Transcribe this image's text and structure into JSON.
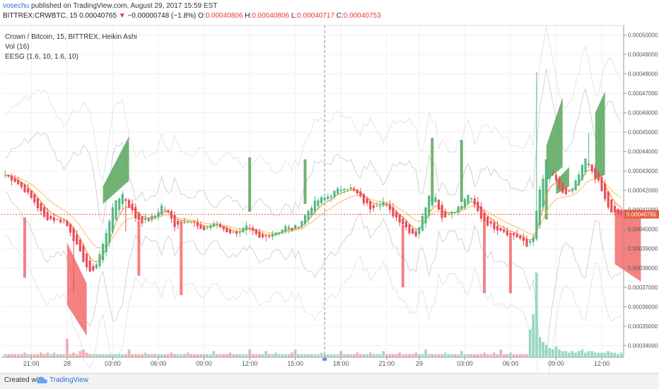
{
  "header": {
    "author": "vosechu",
    "published": "published on TradingView.com, August 29, 2017 15:59 EST",
    "symbol": "BITTREX:CRWBTC, 15",
    "last": "0.00040765",
    "change_arrow": "▼",
    "change": "−0.00000748 (−1.8%)",
    "o_label": "O:",
    "o": "0.00040806",
    "h_label": "H:",
    "h": "0.00040806",
    "l_label": "L:",
    "l": "0.00040717",
    "c_label": "C:",
    "c": "0.00040753"
  },
  "legend": {
    "line1": "Crown / Bitcoin, 15, BITTREX, Heikin Ashi",
    "line2": "Vol (16)",
    "line3": "EESG (1.6, 10, 1.6, 10)"
  },
  "footer": {
    "created_with": "Created with",
    "brand": "TradingView"
  },
  "chart_data": {
    "type": "candlestick",
    "title": "Crown / Bitcoin, 15, BITTREX, Heikin Ashi",
    "y_ticks": [
      "0.00050000",
      "0.00049000",
      "0.00048000",
      "0.00047000",
      "0.00046000",
      "0.00045000",
      "0.00044000",
      "0.00043000",
      "0.00042000",
      "0.00041000",
      "0.00040000",
      "0.00039000",
      "0.00038000",
      "0.00037000",
      "0.00036000",
      "0.00035000",
      "0.00034000"
    ],
    "ylim": [
      0.000334,
      0.000505
    ],
    "last_price_label": "0.00040765",
    "last_price": 0.00040765,
    "x_ticks": [
      "21:00",
      "28",
      "03:00",
      "06:00",
      "09:00",
      "12:00",
      "15:00",
      "18:00",
      "21:00",
      "29",
      "03:00",
      "06:00",
      "09:00",
      "12:00"
    ],
    "x_tick_index": [
      8,
      19,
      33,
      47,
      61,
      75,
      89,
      103,
      117,
      127,
      141,
      155,
      169,
      183
    ],
    "crosshair_index": 98,
    "colors": {
      "up": "#53b987",
      "down": "#eb4d5c",
      "up_fill": "#58a65c",
      "down_fill": "#f26c6c",
      "ema_fast": "#f0a030",
      "ema_slow": "#f7c97a",
      "band": "#c8c8c8",
      "price_line": "#e06040",
      "crosshair": "#6a8fd6"
    },
    "ha_close_path": [
      [
        0,
        0.000428
      ],
      [
        3,
        0.000425
      ],
      [
        6,
        0.00042
      ],
      [
        9,
        0.000414
      ],
      [
        12,
        0.000406
      ],
      [
        15,
        0.000405
      ],
      [
        18,
        0.000404
      ],
      [
        20,
        0.000399
      ],
      [
        22,
        0.000391
      ],
      [
        24,
        0.000384
      ],
      [
        26,
        0.000377
      ],
      [
        28,
        0.000382
      ],
      [
        30,
        0.000392
      ],
      [
        32,
        0.000405
      ],
      [
        34,
        0.000415
      ],
      [
        36,
        0.000418
      ],
      [
        38,
        0.000412
      ],
      [
        40,
        0.000406
      ],
      [
        42,
        0.000404
      ],
      [
        44,
        0.000405
      ],
      [
        46,
        0.000407
      ],
      [
        48,
        0.000412
      ],
      [
        50,
        0.000408
      ],
      [
        52,
        0.000402
      ],
      [
        54,
        0.000404
      ],
      [
        56,
        0.000405
      ],
      [
        58,
        0.000403
      ],
      [
        60,
        0.000399
      ],
      [
        62,
        0.000401
      ],
      [
        64,
        0.000403
      ],
      [
        66,
        0.000401
      ],
      [
        68,
        0.000399
      ],
      [
        70,
        0.000398
      ],
      [
        72,
        0.000399
      ],
      [
        74,
        0.000401
      ],
      [
        76,
        0.000398
      ],
      [
        78,
        0.000395
      ],
      [
        80,
        0.000396
      ],
      [
        82,
        0.000398
      ],
      [
        84,
        0.000399
      ],
      [
        86,
        0.000401
      ],
      [
        88,
        0.0004
      ],
      [
        90,
        0.000402
      ],
      [
        92,
        0.000407
      ],
      [
        94,
        0.000412
      ],
      [
        96,
        0.000415
      ],
      [
        98,
        0.000416
      ],
      [
        100,
        0.000418
      ],
      [
        102,
        0.00042
      ],
      [
        104,
        0.000422
      ],
      [
        106,
        0.000421
      ],
      [
        108,
        0.000418
      ],
      [
        110,
        0.000414
      ],
      [
        112,
        0.000411
      ],
      [
        114,
        0.000413
      ],
      [
        116,
        0.000414
      ],
      [
        118,
        0.000409
      ],
      [
        120,
        0.000406
      ],
      [
        122,
        0.000403
      ],
      [
        124,
        0.000399
      ],
      [
        126,
        0.000397
      ],
      [
        128,
        0.000406
      ],
      [
        130,
        0.000418
      ],
      [
        132,
        0.000416
      ],
      [
        134,
        0.000406
      ],
      [
        136,
        0.000408
      ],
      [
        138,
        0.00041
      ],
      [
        140,
        0.000412
      ],
      [
        142,
        0.000418
      ],
      [
        144,
        0.000412
      ],
      [
        146,
        0.000406
      ],
      [
        148,
        0.000403
      ],
      [
        150,
        0.000401
      ],
      [
        152,
        0.0004
      ],
      [
        154,
        0.000398
      ],
      [
        156,
        0.000397
      ],
      [
        158,
        0.000395
      ],
      [
        160,
        0.000391
      ],
      [
        162,
        0.000397
      ],
      [
        164,
        0.00042
      ],
      [
        166,
        0.000432
      ],
      [
        168,
        0.000428
      ],
      [
        170,
        0.00042
      ],
      [
        172,
        0.000418
      ],
      [
        174,
        0.00042
      ],
      [
        176,
        0.000428
      ],
      [
        178,
        0.000436
      ],
      [
        180,
        0.00043
      ],
      [
        182,
        0.000424
      ],
      [
        184,
        0.000415
      ],
      [
        186,
        0.000408
      ],
      [
        188,
        0.000408
      ],
      [
        189,
        0.000408
      ]
    ],
    "volume": [
      2,
      2,
      2,
      2,
      2,
      2,
      3,
      2,
      2,
      2,
      2,
      3,
      2,
      3,
      2,
      3,
      2,
      2,
      2,
      12,
      2,
      3,
      2,
      4,
      5,
      3,
      2,
      2,
      2,
      2,
      2,
      2,
      2,
      2,
      2,
      2,
      2,
      2,
      5,
      2,
      2,
      2,
      2,
      3,
      2,
      2,
      2,
      2,
      2,
      2,
      2,
      3,
      2,
      2,
      2,
      2,
      3,
      2,
      2,
      2,
      2,
      2,
      2,
      2,
      4,
      2,
      2,
      2,
      2,
      3,
      2,
      2,
      2,
      2,
      2,
      5,
      2,
      2,
      2,
      2,
      4,
      2,
      2,
      3,
      2,
      2,
      2,
      2,
      3,
      5,
      2,
      2,
      2,
      2,
      2,
      2,
      2,
      3,
      2,
      2,
      2,
      2,
      2,
      4,
      2,
      2,
      2,
      2,
      3,
      2,
      2,
      2,
      3,
      2,
      2,
      2,
      4,
      2,
      2,
      2,
      2,
      3,
      2,
      2,
      2,
      2,
      3,
      2,
      2,
      5,
      2,
      2,
      2,
      2,
      2,
      3,
      2,
      2,
      2,
      2,
      4,
      2,
      2,
      2,
      2,
      2,
      2,
      3,
      2,
      2,
      3,
      2,
      5,
      2,
      2,
      3,
      2,
      2,
      2,
      2,
      2,
      18,
      28,
      55,
      13,
      10,
      8,
      6,
      5,
      7,
      5,
      4,
      4,
      3,
      4,
      3,
      4,
      5,
      3,
      4,
      4,
      3,
      3,
      3,
      3,
      4,
      3,
      3,
      2,
      3
    ]
  }
}
